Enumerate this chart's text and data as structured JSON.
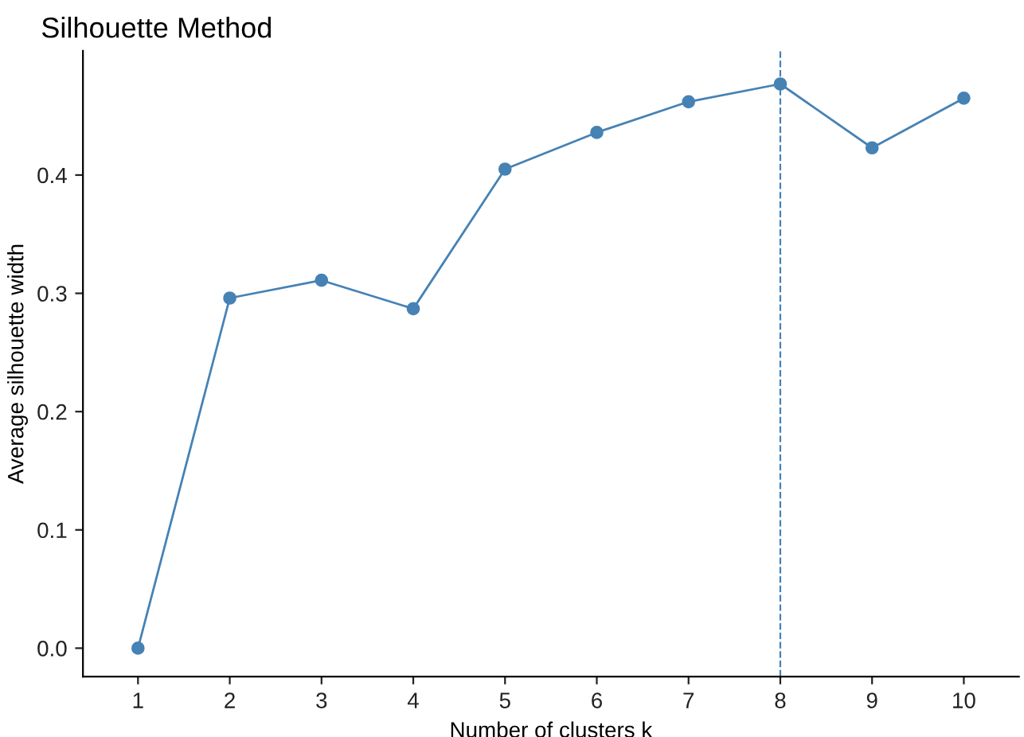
{
  "chart_data": {
    "type": "line",
    "title": "Silhouette Method",
    "xlabel": "Number of clusters k",
    "ylabel": "Average silhouette width",
    "x": [
      1,
      2,
      3,
      4,
      5,
      6,
      7,
      8,
      9,
      10
    ],
    "series": [
      {
        "color": "#4682b4",
        "values": [
          0,
          0.296,
          0.311,
          0.287,
          0.405,
          0.436,
          0.462,
          0.477,
          0.423,
          0.465
        ]
      }
    ],
    "xlim": [
      0.4,
      10.6
    ],
    "xticks": [
      1,
      2,
      3,
      4,
      5,
      6,
      7,
      8,
      9,
      10
    ],
    "ylim": [
      -0.024,
      0.505
    ],
    "yticks": [
      {
        "value": 0,
        "label": "0.0"
      },
      {
        "value": 0.1,
        "label": "0.1"
      },
      {
        "value": 0.2,
        "label": "0.2"
      },
      {
        "value": 0.3,
        "label": "0.3"
      },
      {
        "value": 0.4,
        "label": "0.4"
      }
    ],
    "ref_lines": [
      {
        "axis": "x",
        "value": 8,
        "color": "#4682b4",
        "line_style": "dashed"
      }
    ],
    "marker": "circle",
    "line_style": "solid",
    "grid": false,
    "legend": false
  }
}
